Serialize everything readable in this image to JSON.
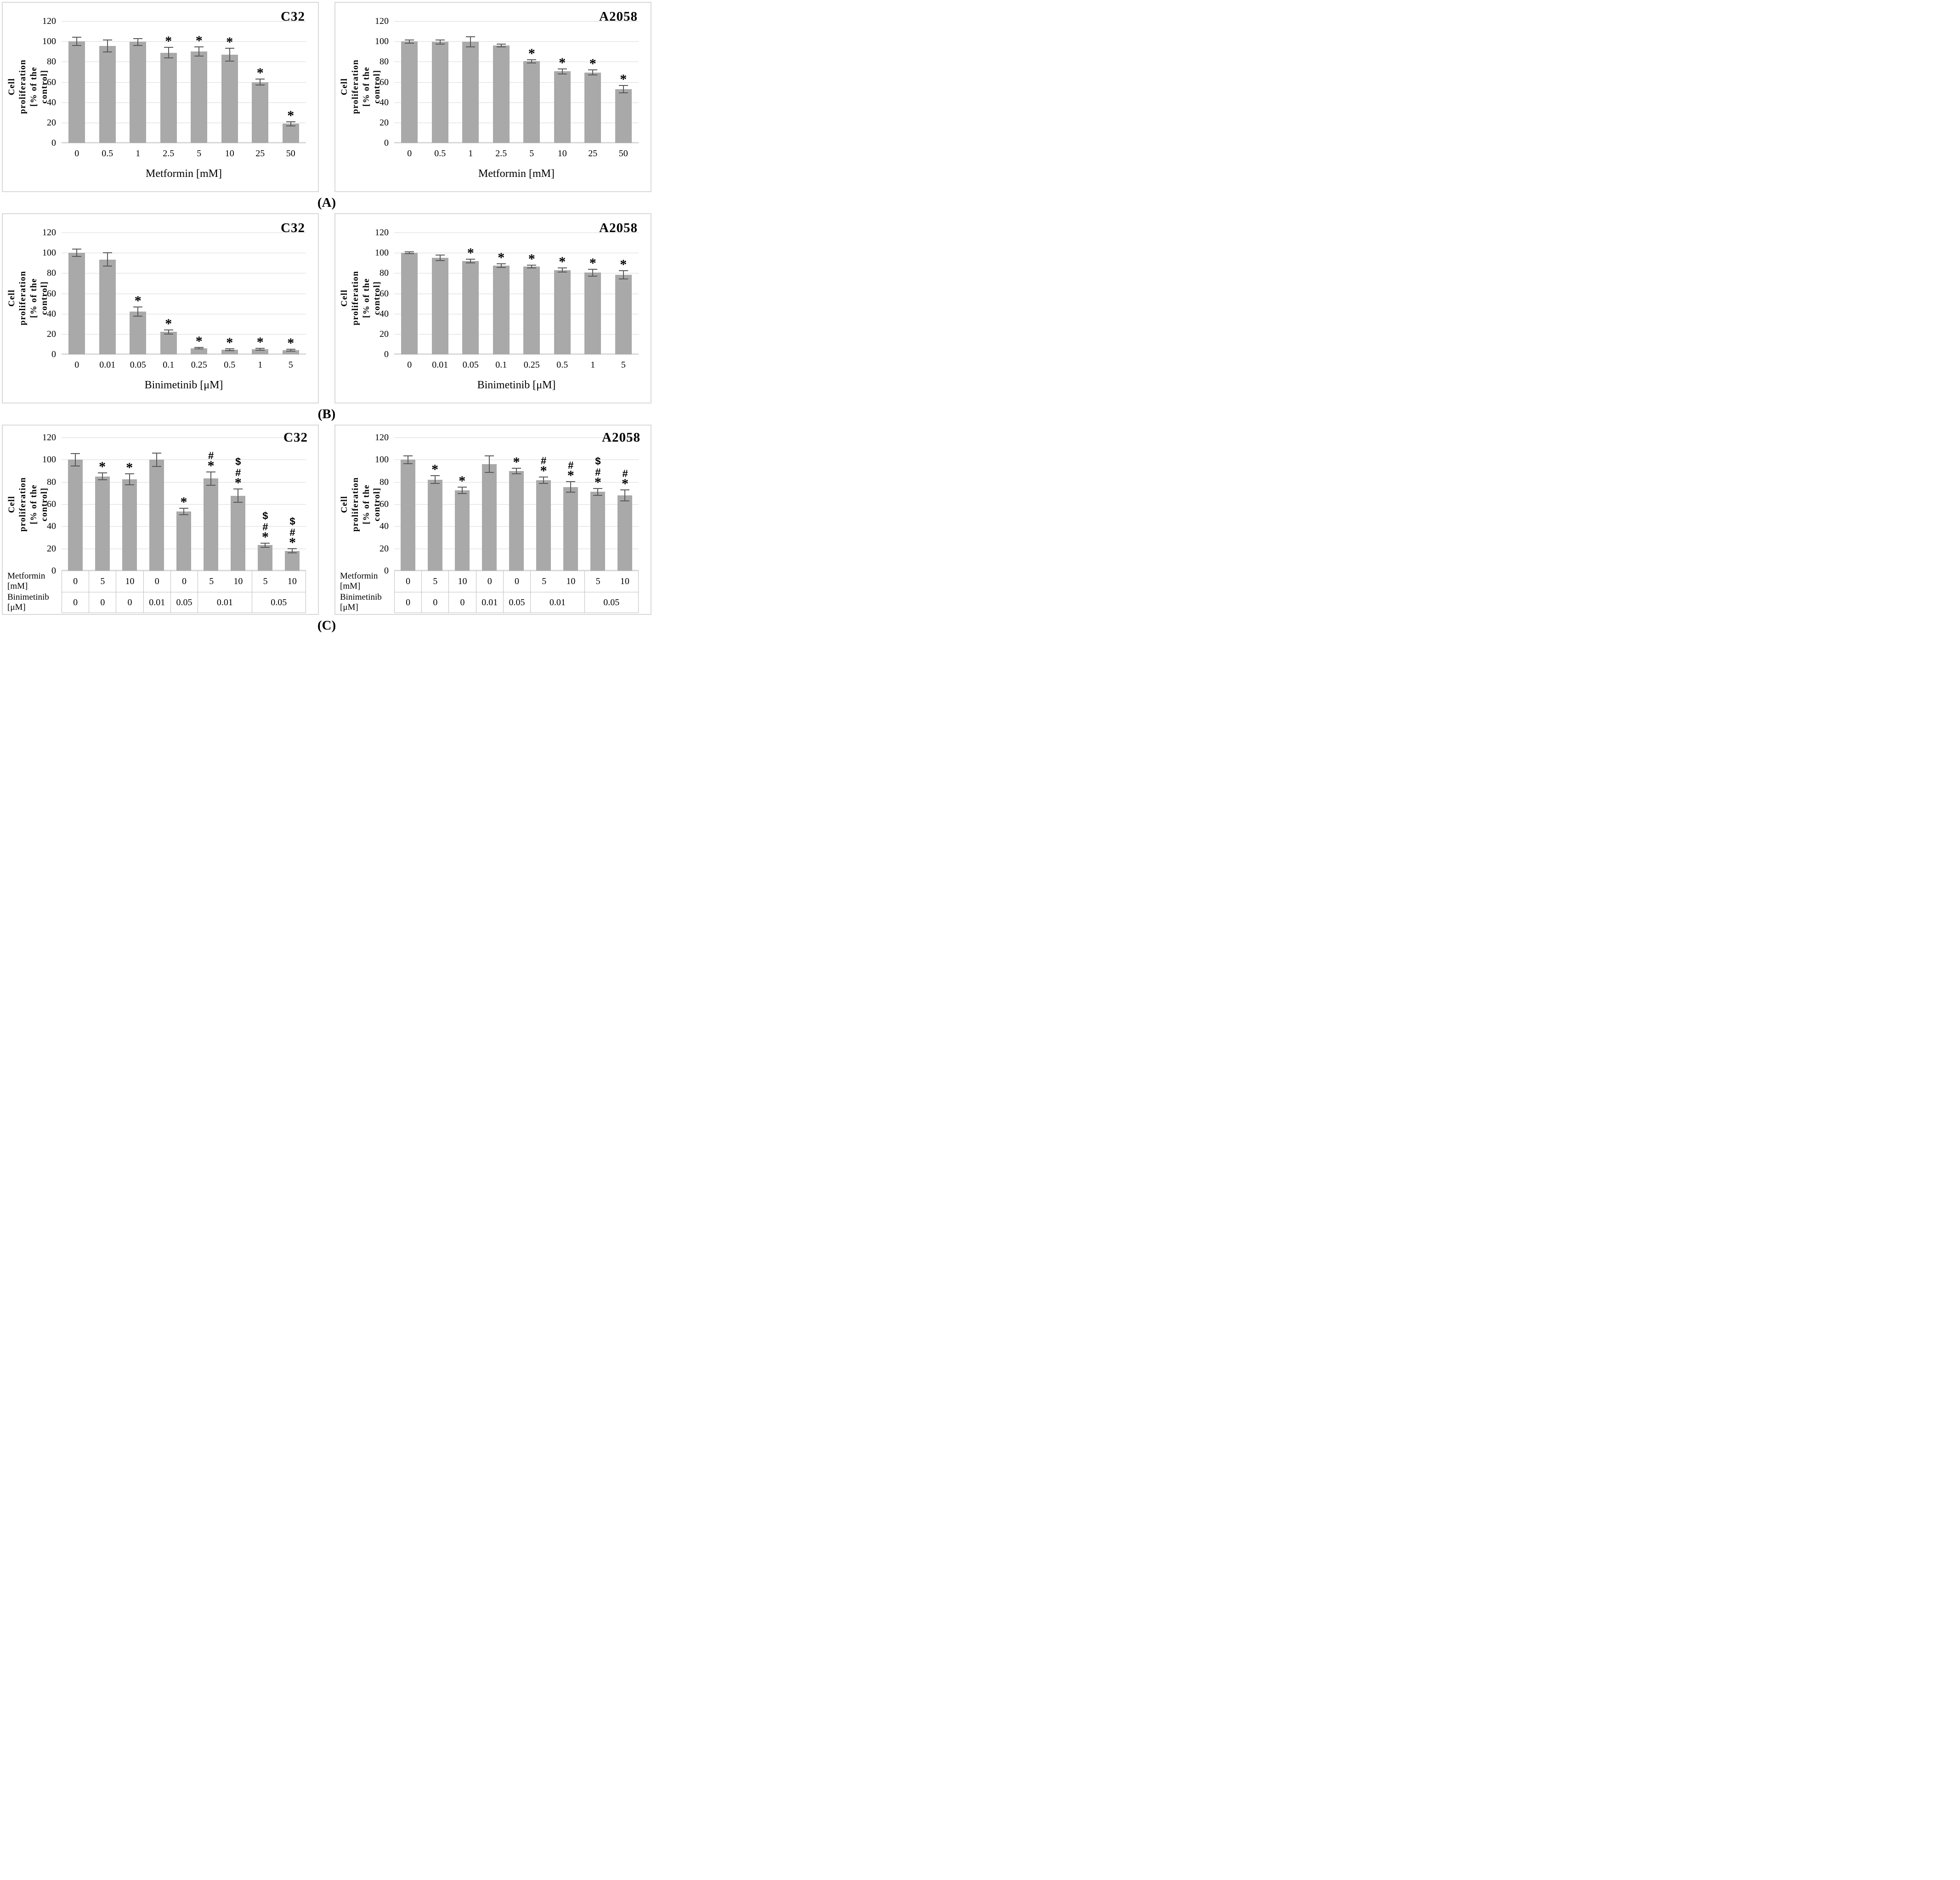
{
  "figure": {
    "captions": [
      "(A)",
      "(B)",
      "(C)"
    ],
    "y_axis": {
      "label": "Cell proliferation [% of the control]",
      "label_two_line": "Cell proliferation\n[% of the control]",
      "ticks": [
        0,
        20,
        40,
        60,
        80,
        100,
        120
      ],
      "max": 120
    },
    "colors": {
      "bar": "#a9a9a9",
      "error_bar": "#595959",
      "gridline": "#d9d9d9",
      "panel_border": "#d9d9d9",
      "table_border": "#bfbfbf"
    }
  },
  "chart_data": [
    {
      "type": "bar",
      "panel": "A",
      "cell_line": "C32",
      "xlabel": "Metformin [mM]",
      "ylabel": "Cell proliferation [% of the control]",
      "ylim": [
        0,
        120
      ],
      "grid": true,
      "combo": false,
      "categories": [
        "0",
        "0.5",
        "1",
        "2.5",
        "5",
        "10",
        "25",
        "50"
      ],
      "values": [
        100,
        95.5,
        99.5,
        89,
        90,
        87,
        60,
        19
      ],
      "errors": [
        4,
        6,
        3.5,
        5,
        4.5,
        6.5,
        3,
        2
      ],
      "annotations": [
        [],
        [],
        [],
        [
          "*"
        ],
        [
          "*"
        ],
        [
          "*"
        ],
        [
          "*"
        ],
        [
          "*"
        ]
      ]
    },
    {
      "type": "bar",
      "panel": "A",
      "cell_line": "A2058",
      "xlabel": "Metformin [mM]",
      "ylabel": "Cell proliferation [% of the control]",
      "ylim": [
        0,
        120
      ],
      "grid": true,
      "combo": false,
      "categories": [
        "0",
        "0.5",
        "1",
        "2.5",
        "5",
        "10",
        "25",
        "50"
      ],
      "values": [
        100,
        99.5,
        99.5,
        96,
        80.5,
        70.5,
        69.5,
        53
      ],
      "errors": [
        1.5,
        2,
        5,
        1.5,
        1.5,
        2.5,
        2.5,
        3.5
      ],
      "annotations": [
        [],
        [],
        [],
        [],
        [
          "*"
        ],
        [
          "*"
        ],
        [
          "*"
        ],
        [
          "*"
        ]
      ]
    },
    {
      "type": "bar",
      "panel": "B",
      "cell_line": "C32",
      "xlabel": "Binimetinib [μM]",
      "ylabel": "Cell proliferation [% of the control]",
      "ylim": [
        0,
        120
      ],
      "grid": true,
      "combo": false,
      "categories": [
        "0",
        "0.01",
        "0.05",
        "0.1",
        "0.25",
        "0.5",
        "1",
        "5"
      ],
      "values": [
        100,
        93.5,
        42,
        22,
        6,
        4.5,
        5,
        4
      ],
      "errors": [
        3.5,
        6.5,
        4.5,
        2,
        0.7,
        1,
        1,
        0.8
      ],
      "annotations": [
        [],
        [],
        [
          "*"
        ],
        [
          "*"
        ],
        [
          "*"
        ],
        [
          "*"
        ],
        [
          "*"
        ],
        [
          "*"
        ]
      ]
    },
    {
      "type": "bar",
      "panel": "B",
      "cell_line": "A2058",
      "xlabel": "Binimetinib [μM]",
      "ylabel": "Cell proliferation [% of the control]",
      "ylim": [
        0,
        120
      ],
      "grid": true,
      "combo": false,
      "categories": [
        "0",
        "0.01",
        "0.05",
        "0.1",
        "0.25",
        "0.5",
        "1",
        "5"
      ],
      "values": [
        100,
        95,
        92,
        87.5,
        86.5,
        83,
        80.5,
        78.5
      ],
      "errors": [
        0.8,
        2.8,
        1.8,
        1.8,
        1.5,
        2,
        3.5,
        4
      ],
      "annotations": [
        [],
        [],
        [
          "*"
        ],
        [
          "*"
        ],
        [
          "*"
        ],
        [
          "*"
        ],
        [
          "*"
        ],
        [
          "*"
        ]
      ]
    },
    {
      "type": "bar",
      "panel": "C",
      "cell_line": "C32",
      "xlabel": "",
      "ylabel": "Cell proliferation [% of the control]",
      "ylim": [
        0,
        120
      ],
      "grid": true,
      "combo": true,
      "categories": [],
      "values": [
        100,
        85,
        82.5,
        100,
        53.5,
        83,
        67.5,
        23,
        18
      ],
      "errors": [
        5.5,
        3,
        5,
        6,
        3,
        6,
        6,
        2,
        2
      ],
      "annotations": [
        [],
        [
          "*"
        ],
        [
          "*"
        ],
        [],
        [
          "*"
        ],
        [
          "#",
          "*"
        ],
        [
          "$",
          "#",
          "*"
        ],
        [
          "$",
          "#",
          "*"
        ],
        [
          "$",
          "#",
          "*"
        ]
      ]
    },
    {
      "type": "bar",
      "panel": "C",
      "cell_line": "A2058",
      "xlabel": "",
      "ylabel": "Cell proliferation [% of the control]",
      "ylim": [
        0,
        120
      ],
      "grid": true,
      "combo": true,
      "categories": [],
      "values": [
        100,
        82,
        72.5,
        96,
        90,
        81.5,
        75.5,
        71,
        68
      ],
      "errors": [
        3.5,
        3.5,
        2.8,
        7.5,
        2.5,
        3,
        4.8,
        3,
        5
      ],
      "annotations": [
        [],
        [
          "*"
        ],
        [
          "*"
        ],
        [],
        [
          "*"
        ],
        [
          "#",
          "*"
        ],
        [
          "#",
          "*"
        ],
        [
          "$",
          "#",
          "*"
        ],
        [
          "#",
          "*"
        ]
      ]
    }
  ],
  "combo_table": {
    "metformin_label": "Metformin [mM]",
    "binimetinib_label": "Binimetinib [μM]",
    "metformin_values": [
      "0",
      "5",
      "10",
      "0",
      "0",
      "5",
      "10",
      "5",
      "10"
    ],
    "binimetinib_cells": [
      {
        "value": "0",
        "span": 1
      },
      {
        "value": "0",
        "span": 1
      },
      {
        "value": "0",
        "span": 1
      },
      {
        "value": "0.01",
        "span": 1
      },
      {
        "value": "0.05",
        "span": 1
      },
      {
        "value": "0.01",
        "span": 2
      },
      {
        "value": "0.05",
        "span": 2
      }
    ]
  }
}
